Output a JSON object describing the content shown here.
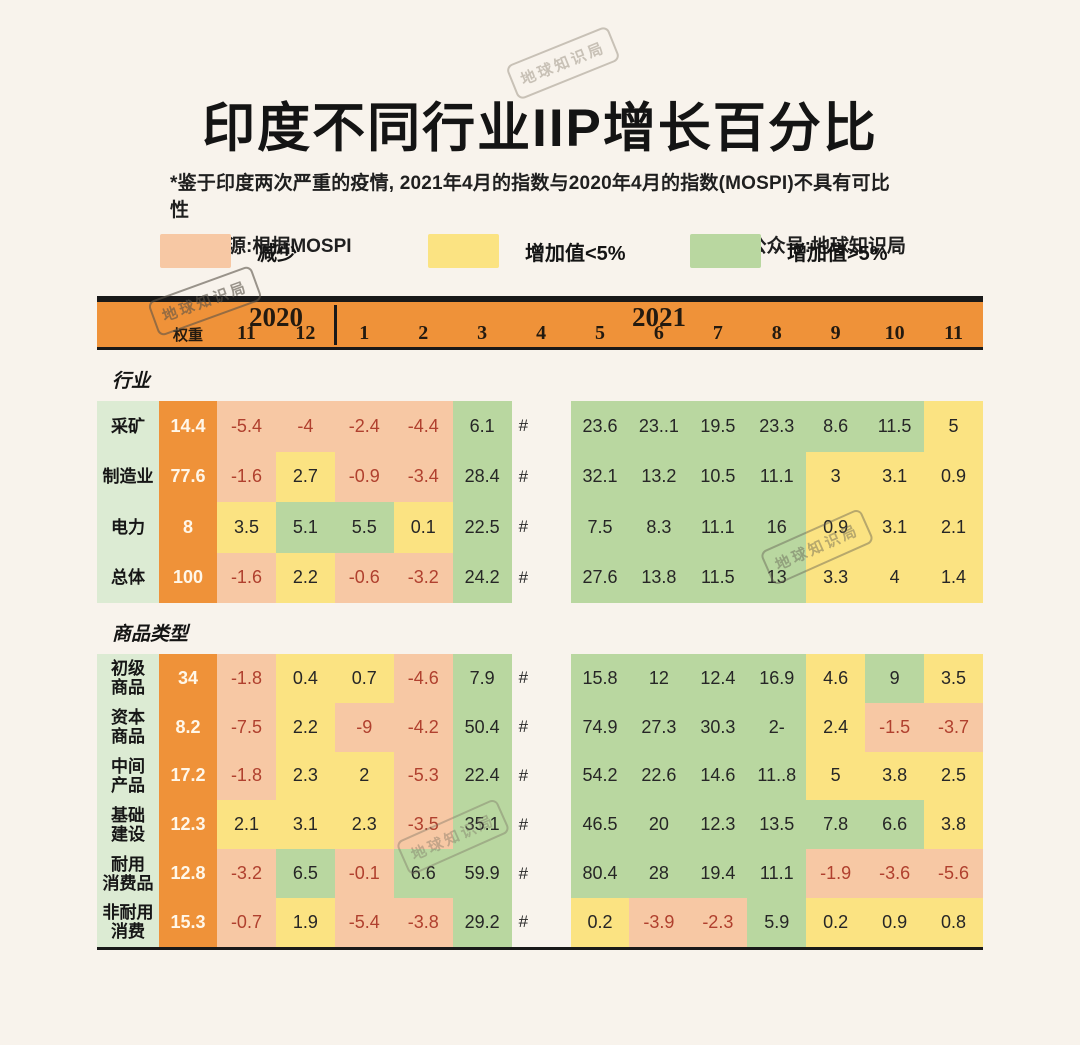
{
  "header": {
    "title": "印度不同行业IIP增长百分比",
    "note_line1": "*鉴于印度两次严重的疫情, 2021年4月的指数与2020年4月的指数(MOSPI)不具有可比性",
    "source": "资料来源:根据MOSPI",
    "account": "公众号:地球知识局"
  },
  "watermark": {
    "text": "地球知识局"
  },
  "legend": {
    "items": [
      {
        "label": "减少",
        "color": "#f7c8a4"
      },
      {
        "label": "增加值<5%",
        "color": "#fbe382"
      },
      {
        "label": "增加值>5%",
        "color": "#b9d7a0"
      }
    ]
  },
  "colors": {
    "background": "#f8f3ec",
    "header_orange": "#ef9239",
    "decrease": "#f7c8a4",
    "increase_lt5": "#fbe382",
    "increase_gt5": "#b9d7a0",
    "label_column": "#dcebd3",
    "negative_text": "#b0402e",
    "bar_black": "#191919"
  },
  "chart_data": {
    "type": "heatmap",
    "title": "印度不同行业IIP增长百分比",
    "weight_header": "权重",
    "year_groups": [
      {
        "year": "2020",
        "months": [
          "11",
          "12"
        ]
      },
      {
        "year": "2021",
        "months": [
          "1",
          "2",
          "3",
          "4",
          "5",
          "6",
          "7",
          "8",
          "9",
          "10",
          "11"
        ]
      }
    ],
    "months": [
      "11",
      "12",
      "1",
      "2",
      "3",
      "4",
      "5",
      "6",
      "7",
      "8",
      "9",
      "10",
      "11"
    ],
    "not_comparable_symbol": "#",
    "legend_mapping": {
      "s": "减少",
      "y": "增加值<5%",
      "g": "增加值>5%",
      "n": "#"
    },
    "sections": [
      {
        "title": "行业",
        "rows": [
          {
            "label": "采矿",
            "weight": "14.4",
            "bold": false,
            "cells": [
              [
                "-5.4",
                "s"
              ],
              [
                "-4",
                "s"
              ],
              [
                "-2.4",
                "s"
              ],
              [
                "-4.4",
                "s"
              ],
              [
                "6.1",
                "g"
              ],
              [
                "#",
                "n"
              ],
              [
                "23.6",
                "g"
              ],
              [
                "23..1",
                "g"
              ],
              [
                "19.5",
                "g"
              ],
              [
                "23.3",
                "g"
              ],
              [
                "8.6",
                "g"
              ],
              [
                "11.5",
                "g"
              ],
              [
                "5",
                "y"
              ]
            ]
          },
          {
            "label": "制造业",
            "weight": "77.6",
            "bold": false,
            "cells": [
              [
                "-1.6",
                "s"
              ],
              [
                "2.7",
                "y"
              ],
              [
                "-0.9",
                "s"
              ],
              [
                "-3.4",
                "s"
              ],
              [
                "28.4",
                "g"
              ],
              [
                "#",
                "n"
              ],
              [
                "32.1",
                "g"
              ],
              [
                "13.2",
                "g"
              ],
              [
                "10.5",
                "g"
              ],
              [
                "11.1",
                "g"
              ],
              [
                "3",
                "y"
              ],
              [
                "3.1",
                "y"
              ],
              [
                "0.9",
                "y"
              ]
            ]
          },
          {
            "label": "电力",
            "weight": "8",
            "bold": false,
            "cells": [
              [
                "3.5",
                "y"
              ],
              [
                "5.1",
                "g"
              ],
              [
                "5.5",
                "g"
              ],
              [
                "0.1",
                "y"
              ],
              [
                "22.5",
                "g"
              ],
              [
                "#",
                "n"
              ],
              [
                "7.5",
                "g"
              ],
              [
                "8.3",
                "g"
              ],
              [
                "11.1",
                "g"
              ],
              [
                "16",
                "g"
              ],
              [
                "0.9",
                "y"
              ],
              [
                "3.1",
                "y"
              ],
              [
                "2.1",
                "y"
              ]
            ]
          },
          {
            "label": "总体",
            "weight": "100",
            "bold": true,
            "cells": [
              [
                "-1.6",
                "s"
              ],
              [
                "2.2",
                "y"
              ],
              [
                "-0.6",
                "s"
              ],
              [
                "-3.2",
                "s"
              ],
              [
                "24.2",
                "g"
              ],
              [
                "#",
                "n"
              ],
              [
                "27.6",
                "g"
              ],
              [
                "13.8",
                "g"
              ],
              [
                "11.5",
                "g"
              ],
              [
                "13",
                "g"
              ],
              [
                "3.3",
                "y"
              ],
              [
                "4",
                "y"
              ],
              [
                "1.4",
                "y"
              ]
            ]
          }
        ]
      },
      {
        "title": "商品类型",
        "rows": [
          {
            "label": "初级\n商品",
            "weight": "34",
            "bold": false,
            "cells": [
              [
                "-1.8",
                "s"
              ],
              [
                "0.4",
                "y"
              ],
              [
                "0.7",
                "y"
              ],
              [
                "-4.6",
                "s"
              ],
              [
                "7.9",
                "g"
              ],
              [
                "#",
                "n"
              ],
              [
                "15.8",
                "g"
              ],
              [
                "12",
                "g"
              ],
              [
                "12.4",
                "g"
              ],
              [
                "16.9",
                "g"
              ],
              [
                "4.6",
                "y"
              ],
              [
                "9",
                "g"
              ],
              [
                "3.5",
                "y"
              ]
            ]
          },
          {
            "label": "资本\n商品",
            "weight": "8.2",
            "bold": false,
            "cells": [
              [
                "-7.5",
                "s"
              ],
              [
                "2.2",
                "y"
              ],
              [
                "-9",
                "s"
              ],
              [
                "-4.2",
                "s"
              ],
              [
                "50.4",
                "g"
              ],
              [
                "#",
                "n"
              ],
              [
                "74.9",
                "g"
              ],
              [
                "27.3",
                "g"
              ],
              [
                "30.3",
                "g"
              ],
              [
                "2-",
                "g"
              ],
              [
                "2.4",
                "y"
              ],
              [
                "-1.5",
                "s"
              ],
              [
                "-3.7",
                "s"
              ]
            ]
          },
          {
            "label": "中间\n产品",
            "weight": "17.2",
            "bold": false,
            "cells": [
              [
                "-1.8",
                "s"
              ],
              [
                "2.3",
                "y"
              ],
              [
                "2",
                "y"
              ],
              [
                "-5.3",
                "s"
              ],
              [
                "22.4",
                "g"
              ],
              [
                "#",
                "n"
              ],
              [
                "54.2",
                "g"
              ],
              [
                "22.6",
                "g"
              ],
              [
                "14.6",
                "g"
              ],
              [
                "11..8",
                "g"
              ],
              [
                "5",
                "y"
              ],
              [
                "3.8",
                "y"
              ],
              [
                "2.5",
                "y"
              ]
            ]
          },
          {
            "label": "基础\n建设",
            "weight": "12.3",
            "bold": false,
            "cells": [
              [
                "2.1",
                "y"
              ],
              [
                "3.1",
                "y"
              ],
              [
                "2.3",
                "y"
              ],
              [
                "-3.5",
                "s"
              ],
              [
                "35.1",
                "g"
              ],
              [
                "#",
                "n"
              ],
              [
                "46.5",
                "g"
              ],
              [
                "20",
                "g"
              ],
              [
                "12.3",
                "g"
              ],
              [
                "13.5",
                "g"
              ],
              [
                "7.8",
                "g"
              ],
              [
                "6.6",
                "g"
              ],
              [
                "3.8",
                "y"
              ]
            ]
          },
          {
            "label": "耐用\n消费品",
            "weight": "12.8",
            "bold": false,
            "cells": [
              [
                "-3.2",
                "s"
              ],
              [
                "6.5",
                "g"
              ],
              [
                "-0.1",
                "s"
              ],
              [
                "6.6",
                "g"
              ],
              [
                "59.9",
                "g"
              ],
              [
                "#",
                "n"
              ],
              [
                "80.4",
                "g"
              ],
              [
                "28",
                "g"
              ],
              [
                "19.4",
                "g"
              ],
              [
                "11.1",
                "g"
              ],
              [
                "-1.9",
                "s"
              ],
              [
                "-3.6",
                "s"
              ],
              [
                "-5.6",
                "s"
              ]
            ]
          },
          {
            "label": "非耐用\n消费",
            "weight": "15.3",
            "bold": false,
            "cells": [
              [
                "-0.7",
                "s"
              ],
              [
                "1.9",
                "y"
              ],
              [
                "-5.4",
                "s"
              ],
              [
                "-3.8",
                "s"
              ],
              [
                "29.2",
                "g"
              ],
              [
                "#",
                "n"
              ],
              [
                "0.2",
                "y"
              ],
              [
                "-3.9",
                "s"
              ],
              [
                "-2.3",
                "s"
              ],
              [
                "5.9",
                "g"
              ],
              [
                "0.2",
                "y"
              ],
              [
                "0.9",
                "y"
              ],
              [
                "0.8",
                "y"
              ]
            ]
          }
        ]
      }
    ]
  }
}
